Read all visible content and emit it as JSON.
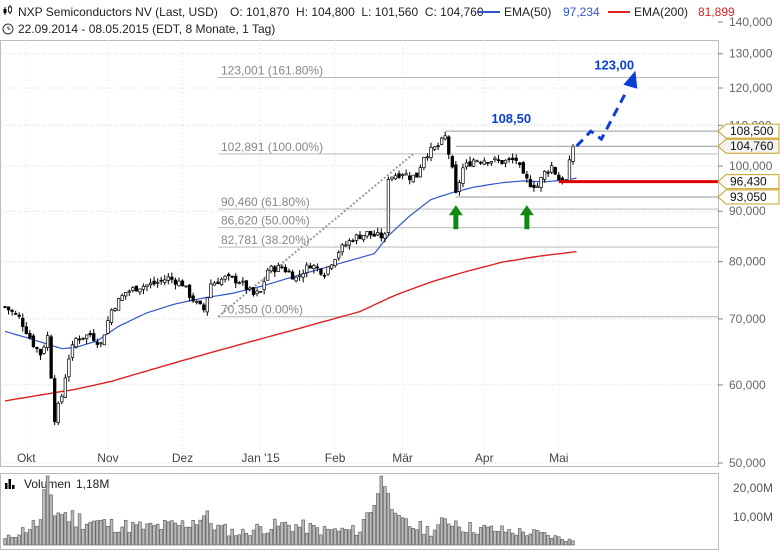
{
  "header": {
    "symbol_icon": "candlestick-icon",
    "title": "NXP Semiconductors NV (Last, USD)",
    "ohlc": "O: 101,870  H: 104,800  L: 101,560  C: 104,760",
    "ema50_label": "EMA(50)",
    "ema50_value": "97,234",
    "ema200_label": "EMA(200)",
    "ema200_value": "81,899",
    "clock_icon": "clock-icon",
    "period": "22.09.2014 - 08.05.2015 (EDT, 8 Monate, 1 Tag)"
  },
  "colors": {
    "candle": "#000000",
    "ema50": "#3355cc",
    "ema200": "#dd2222",
    "support": "#e00000",
    "target": "#0a3ed8",
    "arrow": "#118811",
    "grid": "#cccccc",
    "fib": "#999999"
  },
  "volume": {
    "label": "Volumen",
    "value": "1,18M",
    "ticks": [
      "20,00M",
      "10,00M"
    ]
  },
  "chart_data": {
    "type": "candlestick",
    "y_axis_ticks": [
      {
        "value": 140,
        "label": "140,000"
      },
      {
        "value": 130,
        "label": "130,000"
      },
      {
        "value": 120,
        "label": "120,000"
      },
      {
        "value": 110,
        "label": "110,000"
      },
      {
        "value": 100,
        "label": "100,000"
      },
      {
        "value": 90,
        "label": "90,000"
      },
      {
        "value": 80,
        "label": "80,000"
      },
      {
        "value": 70,
        "label": "70,000"
      },
      {
        "value": 60,
        "label": "60,000"
      },
      {
        "value": 50,
        "label": "50,000"
      }
    ],
    "ylim": [
      50,
      140
    ],
    "log_scale": true,
    "x_axis_labels": [
      {
        "label": "Okt",
        "bar": 6
      },
      {
        "label": "Nov",
        "bar": 29
      },
      {
        "label": "Dez",
        "bar": 50
      },
      {
        "label": "Jan '15",
        "bar": 72
      },
      {
        "label": "Feb",
        "bar": 93
      },
      {
        "label": "Mär",
        "bar": 112
      },
      {
        "label": "Apr",
        "bar": 135
      },
      {
        "label": "Mai",
        "bar": 156
      }
    ],
    "fib_levels": [
      {
        "label": "123,001 (161.80%)",
        "value": 123.001
      },
      {
        "label": "102,891 (100.00%)",
        "value": 102.891
      },
      {
        "label": "90,460 (61.80%)",
        "value": 90.46
      },
      {
        "label": "86,620 (50.00%)",
        "value": 86.62
      },
      {
        "label": "82,781 (38.20%)",
        "value": 82.781
      },
      {
        "label": "70,350 (0.00%)",
        "value": 70.35
      }
    ],
    "price_tags": [
      {
        "label": "108,500",
        "value": 108.5
      },
      {
        "label": "104,760",
        "value": 104.76
      },
      {
        "label": "96,430",
        "value": 96.43
      },
      {
        "label": "93,050",
        "value": 93.05
      }
    ],
    "annotations": [
      {
        "label": "108,50",
        "value": 108.5
      },
      {
        "label": "123,00",
        "value": 123.0
      }
    ],
    "ohlc_anchors": [
      [
        0,
        72.0
      ],
      [
        4,
        70.2
      ],
      [
        8,
        66.0
      ],
      [
        10,
        64.5
      ],
      [
        12,
        67.2
      ],
      [
        14,
        55.5
      ],
      [
        16,
        58.5
      ],
      [
        18,
        64.0
      ],
      [
        20,
        66.8
      ],
      [
        24,
        67.5
      ],
      [
        27,
        66.0
      ],
      [
        30,
        71.5
      ],
      [
        34,
        74.5
      ],
      [
        38,
        75.5
      ],
      [
        42,
        76.0
      ],
      [
        46,
        77.0
      ],
      [
        50,
        76.0
      ],
      [
        52,
        74.0
      ],
      [
        54,
        72.5
      ],
      [
        56,
        71.5
      ],
      [
        58,
        76.0
      ],
      [
        62,
        77.0
      ],
      [
        66,
        76.5
      ],
      [
        70,
        74.0
      ],
      [
        72,
        74.5
      ],
      [
        74,
        78.5
      ],
      [
        78,
        79.0
      ],
      [
        82,
        77.0
      ],
      [
        86,
        79.5
      ],
      [
        90,
        78.0
      ],
      [
        94,
        82.0
      ],
      [
        98,
        84.5
      ],
      [
        102,
        85.5
      ],
      [
        104,
        85.0
      ],
      [
        107,
        84.8
      ],
      [
        108,
        97.5
      ],
      [
        112,
        98.5
      ],
      [
        114,
        97.5
      ],
      [
        116,
        97.8
      ],
      [
        118,
        102.5
      ],
      [
        122,
        104.8
      ],
      [
        124,
        107.0
      ],
      [
        126,
        99.0
      ],
      [
        127,
        93.5
      ],
      [
        129,
        99.5
      ],
      [
        132,
        101.5
      ],
      [
        136,
        101.5
      ],
      [
        140,
        101.0
      ],
      [
        144,
        101.5
      ],
      [
        146,
        97.5
      ],
      [
        148,
        96.0
      ],
      [
        150,
        95.5
      ],
      [
        152,
        98.5
      ],
      [
        154,
        100.0
      ],
      [
        156,
        97.0
      ],
      [
        158,
        96.5
      ],
      [
        160,
        104.76
      ]
    ],
    "ema50_anchors": [
      [
        0,
        68.0
      ],
      [
        6,
        67.0
      ],
      [
        12,
        66.0
      ],
      [
        16,
        65.3
      ],
      [
        20,
        65.5
      ],
      [
        26,
        66.5
      ],
      [
        32,
        68.8
      ],
      [
        40,
        71.0
      ],
      [
        48,
        72.5
      ],
      [
        56,
        73.5
      ],
      [
        64,
        74.3
      ],
      [
        72,
        75.5
      ],
      [
        80,
        77.0
      ],
      [
        88,
        78.5
      ],
      [
        96,
        80.0
      ],
      [
        104,
        81.5
      ],
      [
        108,
        85.0
      ],
      [
        114,
        89.0
      ],
      [
        120,
        92.5
      ],
      [
        126,
        94.0
      ],
      [
        132,
        95.2
      ],
      [
        140,
        96.2
      ],
      [
        146,
        96.6
      ],
      [
        152,
        96.4
      ],
      [
        158,
        96.8
      ],
      [
        161,
        97.234
      ]
    ],
    "ema200_anchors": [
      [
        0,
        57.8
      ],
      [
        10,
        58.6
      ],
      [
        20,
        59.4
      ],
      [
        30,
        60.5
      ],
      [
        40,
        62.0
      ],
      [
        50,
        63.5
      ],
      [
        60,
        65.0
      ],
      [
        70,
        66.5
      ],
      [
        80,
        68.0
      ],
      [
        90,
        69.6
      ],
      [
        100,
        71.2
      ],
      [
        110,
        74.0
      ],
      [
        120,
        76.3
      ],
      [
        130,
        78.2
      ],
      [
        140,
        79.9
      ],
      [
        150,
        81.0
      ],
      [
        161,
        81.899
      ]
    ],
    "volume_anchors_millions": [
      [
        0,
        2
      ],
      [
        10,
        8
      ],
      [
        12,
        22
      ],
      [
        14,
        12
      ],
      [
        20,
        9
      ],
      [
        30,
        7
      ],
      [
        40,
        6
      ],
      [
        50,
        7
      ],
      [
        56,
        10
      ],
      [
        60,
        6
      ],
      [
        66,
        4
      ],
      [
        72,
        6
      ],
      [
        80,
        7
      ],
      [
        90,
        5
      ],
      [
        100,
        5
      ],
      [
        108,
        28
      ],
      [
        110,
        8
      ],
      [
        120,
        5
      ],
      [
        126,
        9
      ],
      [
        130,
        6
      ],
      [
        140,
        5
      ],
      [
        150,
        4
      ],
      [
        161,
        1.18
      ]
    ]
  }
}
